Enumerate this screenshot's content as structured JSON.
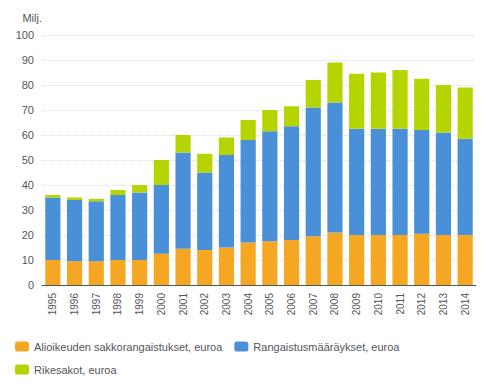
{
  "chart_data": {
    "type": "bar",
    "stacked": true,
    "ylabel": "Milj.",
    "categories": [
      "1995",
      "1996",
      "1997",
      "1998",
      "1999",
      "2000",
      "2001",
      "2002",
      "2003",
      "2004",
      "2005",
      "2006",
      "2007",
      "2008",
      "2009",
      "2010",
      "2011",
      "2012",
      "2013",
      "2014"
    ],
    "series": [
      {
        "name": "Alioikeuden sakkorangaistukset, euroa",
        "color": "#f5a623",
        "values": [
          10,
          9.5,
          9.5,
          10,
          10,
          12.5,
          14.5,
          14,
          15,
          17,
          17.5,
          18,
          19.5,
          21,
          20,
          20,
          20,
          20.5,
          20,
          20
        ]
      },
      {
        "name": "Rangaistusmääräykset, euroa",
        "color": "#4a90d9",
        "values": [
          25,
          24.5,
          24,
          26,
          27,
          27.5,
          38.5,
          31,
          37,
          41,
          44,
          45.5,
          51.5,
          52,
          42.5,
          42.5,
          42.5,
          41.5,
          41,
          38.5
        ]
      },
      {
        "name": "Rikesakot, euroa",
        "color": "#b5d400",
        "values": [
          1,
          1,
          1,
          2,
          3,
          10,
          7,
          7.5,
          7,
          8,
          8.5,
          8,
          11,
          16,
          22,
          22.5,
          23.5,
          20.5,
          19,
          20.5
        ]
      }
    ],
    "ylim": [
      0,
      100
    ],
    "yticks": [
      0,
      10,
      20,
      30,
      40,
      50,
      60,
      70,
      80,
      90,
      100
    ],
    "grid": true,
    "legend": "bottom"
  }
}
